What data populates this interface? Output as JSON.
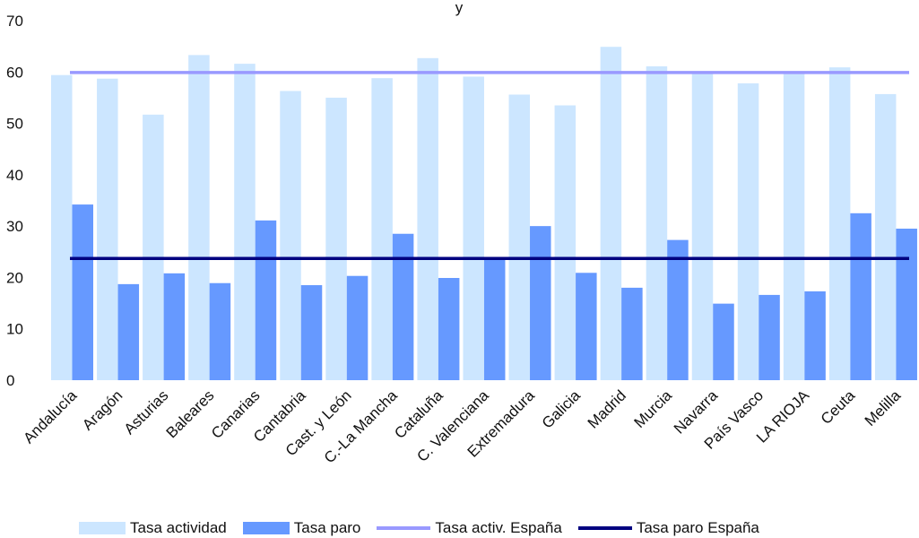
{
  "chart_data": {
    "type": "bar",
    "title": "y",
    "categories": [
      "Andalucía",
      "Aragón",
      "Asturias",
      "Baleares",
      "Canarias",
      "Cantabria",
      "Cast. y León",
      "C.-La Mancha",
      "Cataluña",
      "C. Valenciana",
      "Extremadura",
      "Galicia",
      "Madrid",
      "Murcia",
      "Navarra",
      "País Vasco",
      "LA RIOJA",
      "Ceuta",
      "Melilla"
    ],
    "series": [
      {
        "name": "Tasa actividad",
        "kind": "bar",
        "color": "#cce6ff",
        "values": [
          59.4,
          58.7,
          51.7,
          63.3,
          61.6,
          56.3,
          55.0,
          58.8,
          62.7,
          59.1,
          55.6,
          53.5,
          64.9,
          61.1,
          59.8,
          57.8,
          59.6,
          60.9,
          55.7
        ]
      },
      {
        "name": "Tasa paro",
        "kind": "bar",
        "color": "#6699ff",
        "values": [
          34.2,
          18.7,
          20.8,
          18.9,
          31.1,
          18.5,
          20.3,
          28.5,
          19.9,
          24.0,
          30.0,
          20.9,
          18.0,
          27.3,
          14.9,
          16.6,
          17.3,
          32.5,
          29.5
        ]
      },
      {
        "name": "Tasa activ. España",
        "kind": "line",
        "color": "#9999ff",
        "value": 59.9
      },
      {
        "name": "Tasa paro España",
        "kind": "line",
        "color": "#000080",
        "value": 23.7
      }
    ],
    "ylim": [
      0,
      70
    ],
    "yticks": [
      0,
      10,
      20,
      30,
      40,
      50,
      60,
      70
    ],
    "xlabel": "",
    "ylabel": "",
    "grid": false,
    "legend_position": "bottom"
  }
}
